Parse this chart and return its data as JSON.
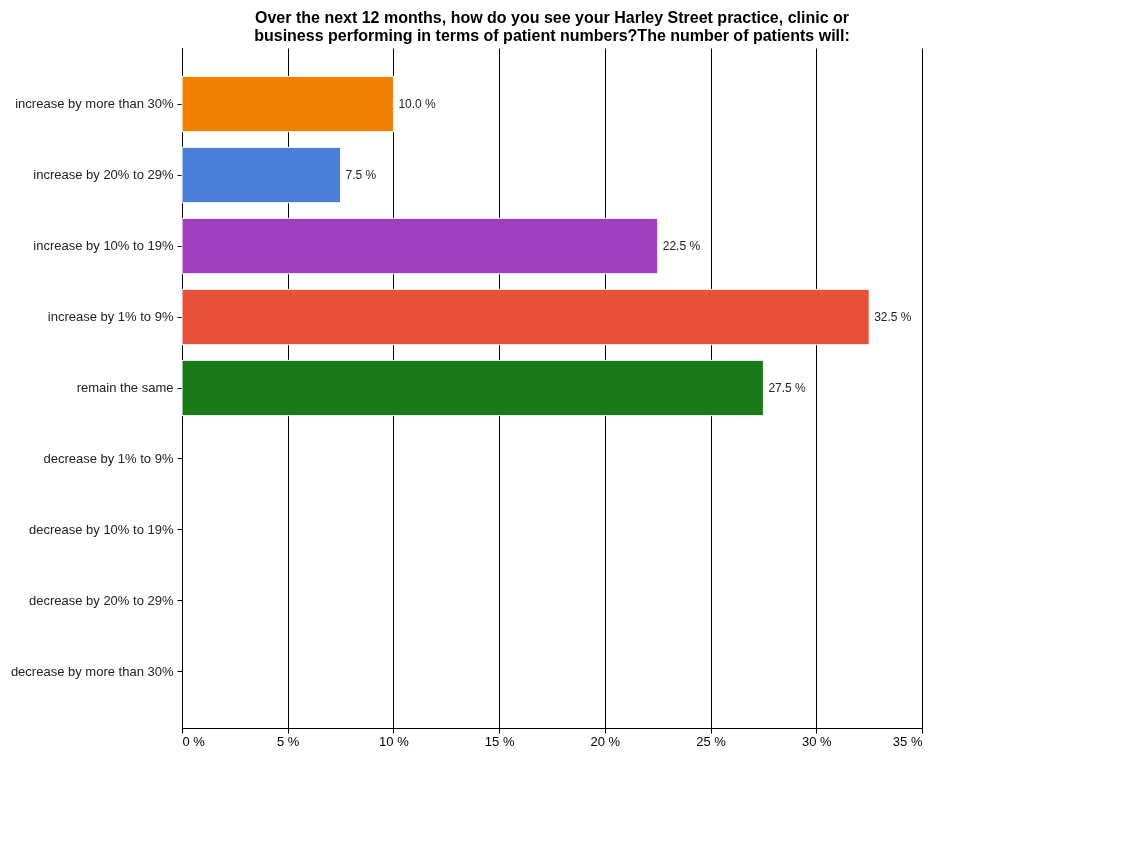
{
  "chart_data": {
    "type": "bar",
    "orientation": "horizontal",
    "title": "Over the next 12 months, how do you see your Harley Street practice, clinic or business performing in terms of patient numbers?The number of patients will:",
    "categories": [
      "increase by more than 30%",
      "increase by 20% to 29%",
      "increase by 10% to 19%",
      "increase by 1% to 9%",
      "remain the same",
      "decrease by 1% to 9%",
      "decrease by 10% to 19%",
      "decrease by 20% to 29%",
      "decrease by more than 30%"
    ],
    "values": [
      10.0,
      7.5,
      22.5,
      32.5,
      27.5,
      null,
      null,
      null,
      null
    ],
    "value_labels": [
      "10.0 %",
      "7.5 %",
      "22.5 %",
      "32.5 %",
      "27.5 %",
      null,
      null,
      null,
      null
    ],
    "colors": [
      "#f08000",
      "#4a7fd8",
      "#a040c0",
      "#e8503a",
      "#1a7a1a",
      null,
      null,
      null,
      null
    ],
    "xlim": [
      0,
      35
    ],
    "xticks": [
      {
        "value": 0,
        "label": "0 %"
      },
      {
        "value": 5,
        "label": "5 %"
      },
      {
        "value": 10,
        "label": "10 %"
      },
      {
        "value": 15,
        "label": "15 %"
      },
      {
        "value": 20,
        "label": "20 %"
      },
      {
        "value": 25,
        "label": "25 %"
      },
      {
        "value": 30,
        "label": "30 %"
      },
      {
        "value": 35,
        "label": "35 %"
      }
    ],
    "grid": "x"
  }
}
